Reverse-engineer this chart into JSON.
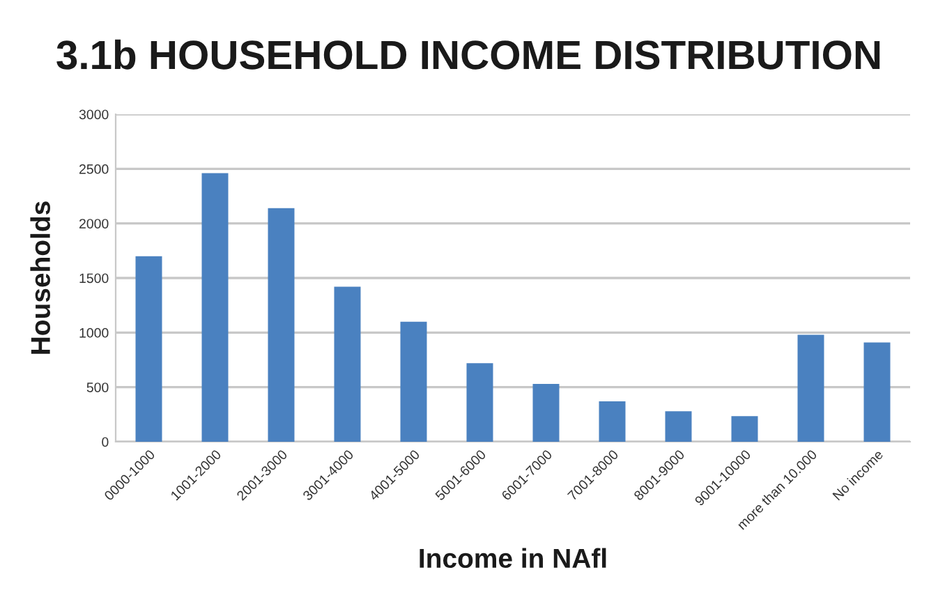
{
  "chart_data": {
    "type": "bar",
    "title": "3.1b HOUSEHOLD INCOME DISTRIBUTION",
    "xlabel": "Income in NAfl",
    "ylabel": "Households",
    "categories": [
      "0000-1000",
      "1001-2000",
      "2001-3000",
      "3001-4000",
      "4001-5000",
      "5001-6000",
      "6001-7000",
      "7001-8000",
      "8001-9000",
      "9001-10000",
      "more than 10.000",
      "No income"
    ],
    "values": [
      1700,
      2460,
      2140,
      1420,
      1100,
      720,
      530,
      370,
      280,
      235,
      980,
      910
    ],
    "color": "#4a81c0",
    "ylim": [
      0,
      3000
    ],
    "yticks": [
      0,
      500,
      1000,
      1500,
      2000,
      2500,
      3000
    ],
    "grid": "y",
    "legend": false
  }
}
